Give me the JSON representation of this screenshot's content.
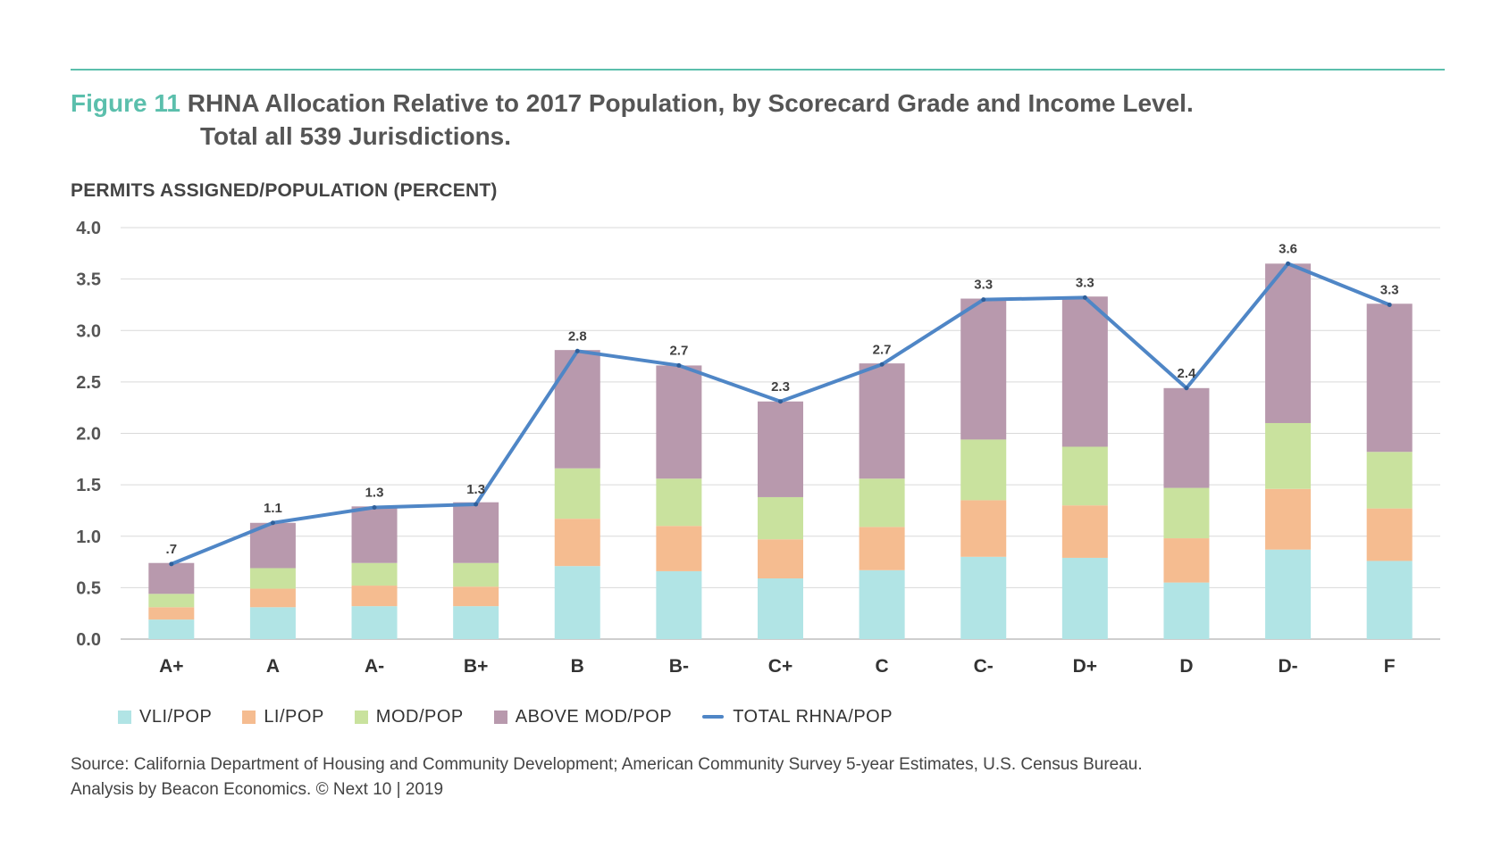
{
  "header": {
    "figure_label": "Figure 11",
    "title_line1": "RHNA Allocation Relative to 2017 Population, by Scorecard Grade and Income Level.",
    "title_line2": "Total all 539 Jurisdictions.",
    "rule_color": "#5bbfac"
  },
  "chart_data": {
    "type": "bar",
    "stacked": true,
    "title": "RHNA Allocation Relative to 2017 Population, by Scorecard Grade and Income Level.",
    "ylabel": "PERMITS ASSIGNED/POPULATION (PERCENT)",
    "xlabel": "",
    "ylim": [
      0,
      4.0
    ],
    "yticks": [
      "0.0",
      "0.5",
      "1.0",
      "1.5",
      "2.0",
      "2.5",
      "3.0",
      "3.5",
      "4.0"
    ],
    "grid": true,
    "legend_placement": "bottom",
    "categories": [
      "A+",
      "A",
      "A-",
      "B+",
      "B",
      "B-",
      "C+",
      "C",
      "C-",
      "D+",
      "D",
      "D-",
      "F"
    ],
    "series": [
      {
        "name": "VLI/POP",
        "color": "#b1e4e5",
        "values": [
          0.19,
          0.31,
          0.32,
          0.32,
          0.71,
          0.66,
          0.59,
          0.67,
          0.8,
          0.79,
          0.55,
          0.87,
          0.76
        ]
      },
      {
        "name": "LI/POP",
        "color": "#f5bc90",
        "values": [
          0.12,
          0.18,
          0.2,
          0.19,
          0.46,
          0.44,
          0.38,
          0.42,
          0.55,
          0.51,
          0.43,
          0.59,
          0.51
        ]
      },
      {
        "name": "MOD/POP",
        "color": "#c9e29e",
        "values": [
          0.13,
          0.2,
          0.22,
          0.23,
          0.49,
          0.46,
          0.41,
          0.47,
          0.59,
          0.57,
          0.49,
          0.64,
          0.55
        ]
      },
      {
        "name": "ABOVE MOD/POP",
        "color": "#b899ad",
        "values": [
          0.3,
          0.44,
          0.55,
          0.59,
          1.15,
          1.1,
          0.93,
          1.12,
          1.37,
          1.46,
          0.97,
          1.55,
          1.44
        ]
      }
    ],
    "line": {
      "name": "TOTAL RHNA/POP",
      "color": "#4f86c6",
      "values": [
        0.73,
        1.13,
        1.28,
        1.31,
        2.8,
        2.66,
        2.31,
        2.67,
        3.3,
        3.32,
        2.44,
        3.65,
        3.25
      ],
      "labels": [
        ".7",
        "1.1",
        "1.3",
        "1.3",
        "2.8",
        "2.7",
        "2.3",
        "2.7",
        "3.3",
        "3.3",
        "2.4",
        "3.6",
        "3.3"
      ]
    }
  },
  "source": {
    "line1": "Source: California Department of Housing and Community Development; American Community Survey 5-year Estimates, U.S. Census Bureau.",
    "line2": "Analysis by Beacon Economics. © Next 10 | 2019"
  }
}
